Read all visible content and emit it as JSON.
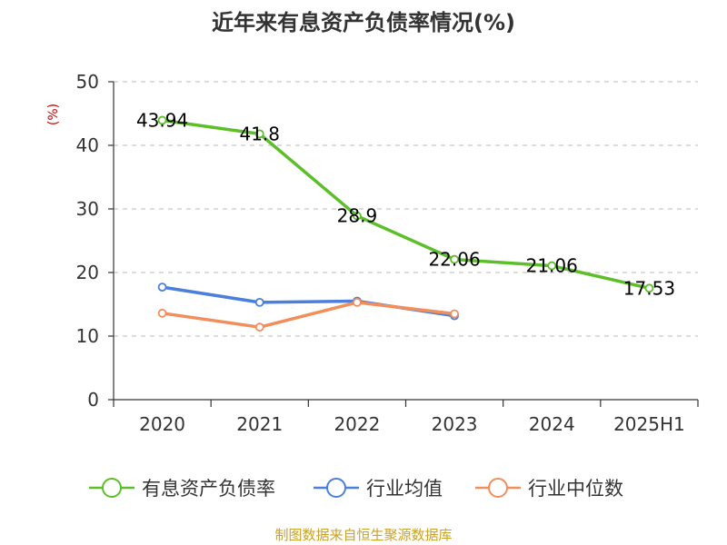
{
  "chart_data": {
    "type": "line",
    "title": "近年来有息资产负债率情况(%)",
    "ylabel": "(%)",
    "xlabel": "",
    "ylim": [
      0,
      50
    ],
    "yticks": [
      0,
      10,
      20,
      30,
      40,
      50
    ],
    "grid": true,
    "legend_position": "bottom",
    "categories": [
      "2020",
      "2021",
      "2022",
      "2023",
      "2024",
      "2025H1"
    ],
    "series": [
      {
        "name": "有息资产负债率",
        "color": "#5cbf2a",
        "values": [
          43.94,
          41.8,
          28.9,
          22.06,
          21.06,
          17.53
        ],
        "labels": [
          "43.94",
          "41.8",
          "28.9",
          "22.06",
          "21.06",
          "17.53"
        ],
        "show_labels": true
      },
      {
        "name": "行业均值",
        "color": "#4a7fdb",
        "values": [
          17.7,
          15.3,
          15.5,
          13.2,
          null,
          null
        ],
        "show_labels": false
      },
      {
        "name": "行业中位数",
        "color": "#f28e5c",
        "values": [
          13.6,
          11.4,
          15.3,
          13.5,
          null,
          null
        ],
        "show_labels": false
      }
    ],
    "source": "制图数据来自恒生聚源数据库"
  }
}
